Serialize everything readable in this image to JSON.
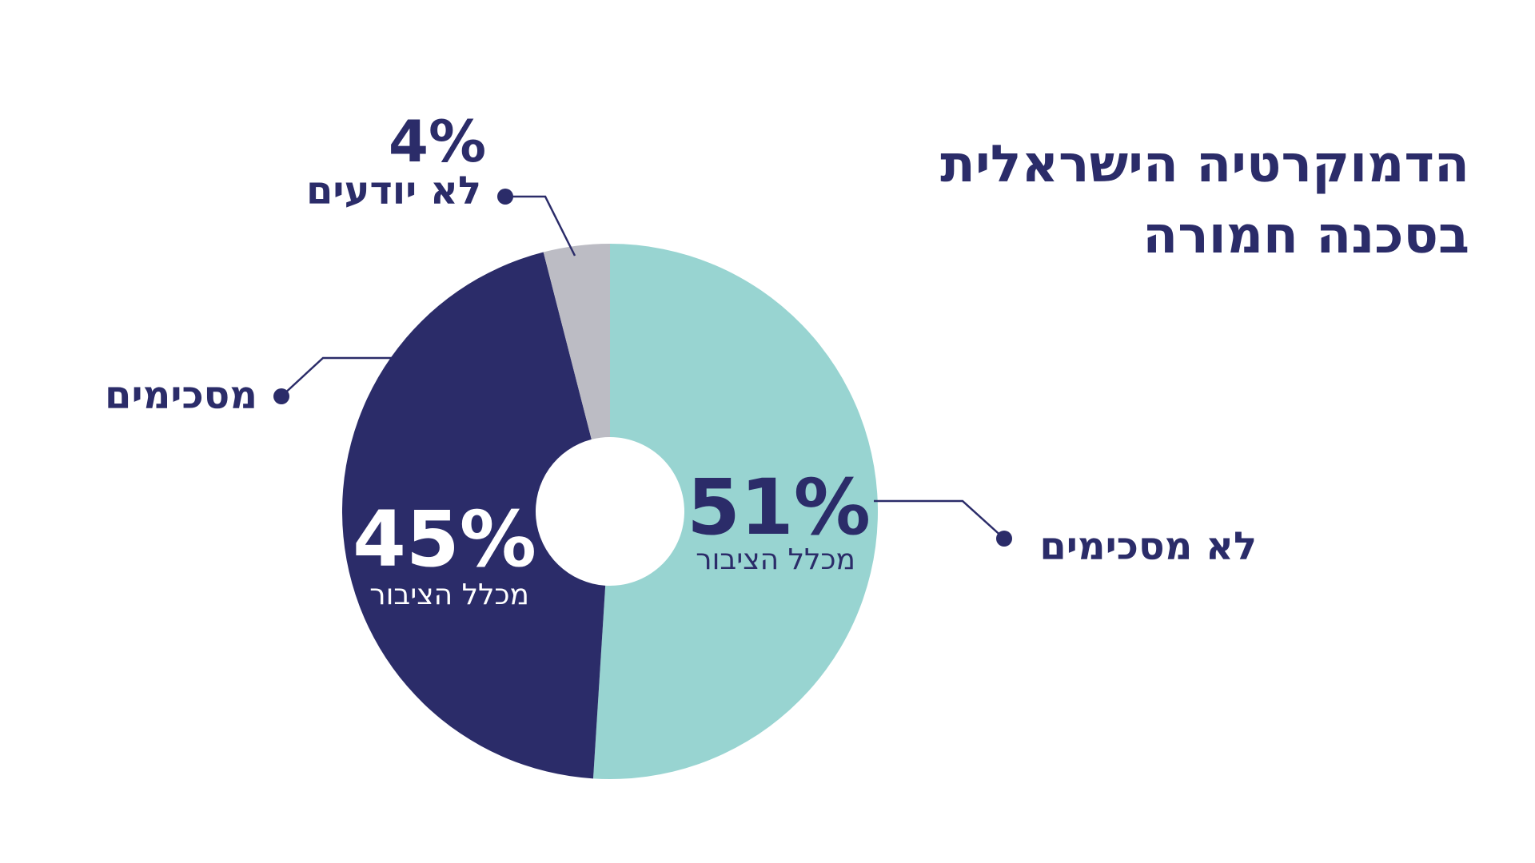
{
  "colors": {
    "text": "#2b2c69",
    "disagree": "#98d4d1",
    "agree": "#2b2c69",
    "dont_know": "#bcbcc4",
    "background": "#ffffff"
  },
  "chart_data": {
    "type": "pie",
    "title_lines": [
      "הדמוקרטיה הישראלית",
      "בסכנה חמורה"
    ],
    "series": [
      {
        "label": "לא מסכימים",
        "value": 51,
        "value_text": "51%",
        "sublabel": "מכלל הציבור",
        "color": "#98d4d1"
      },
      {
        "label": "מסכימים",
        "value": 45,
        "value_text": "45%",
        "sublabel": "מכלל הציבור",
        "color": "#2b2c69"
      },
      {
        "label": "לא יודעים",
        "value": 4,
        "value_text": "4%",
        "sublabel": "",
        "color": "#bcbcc4"
      }
    ]
  }
}
